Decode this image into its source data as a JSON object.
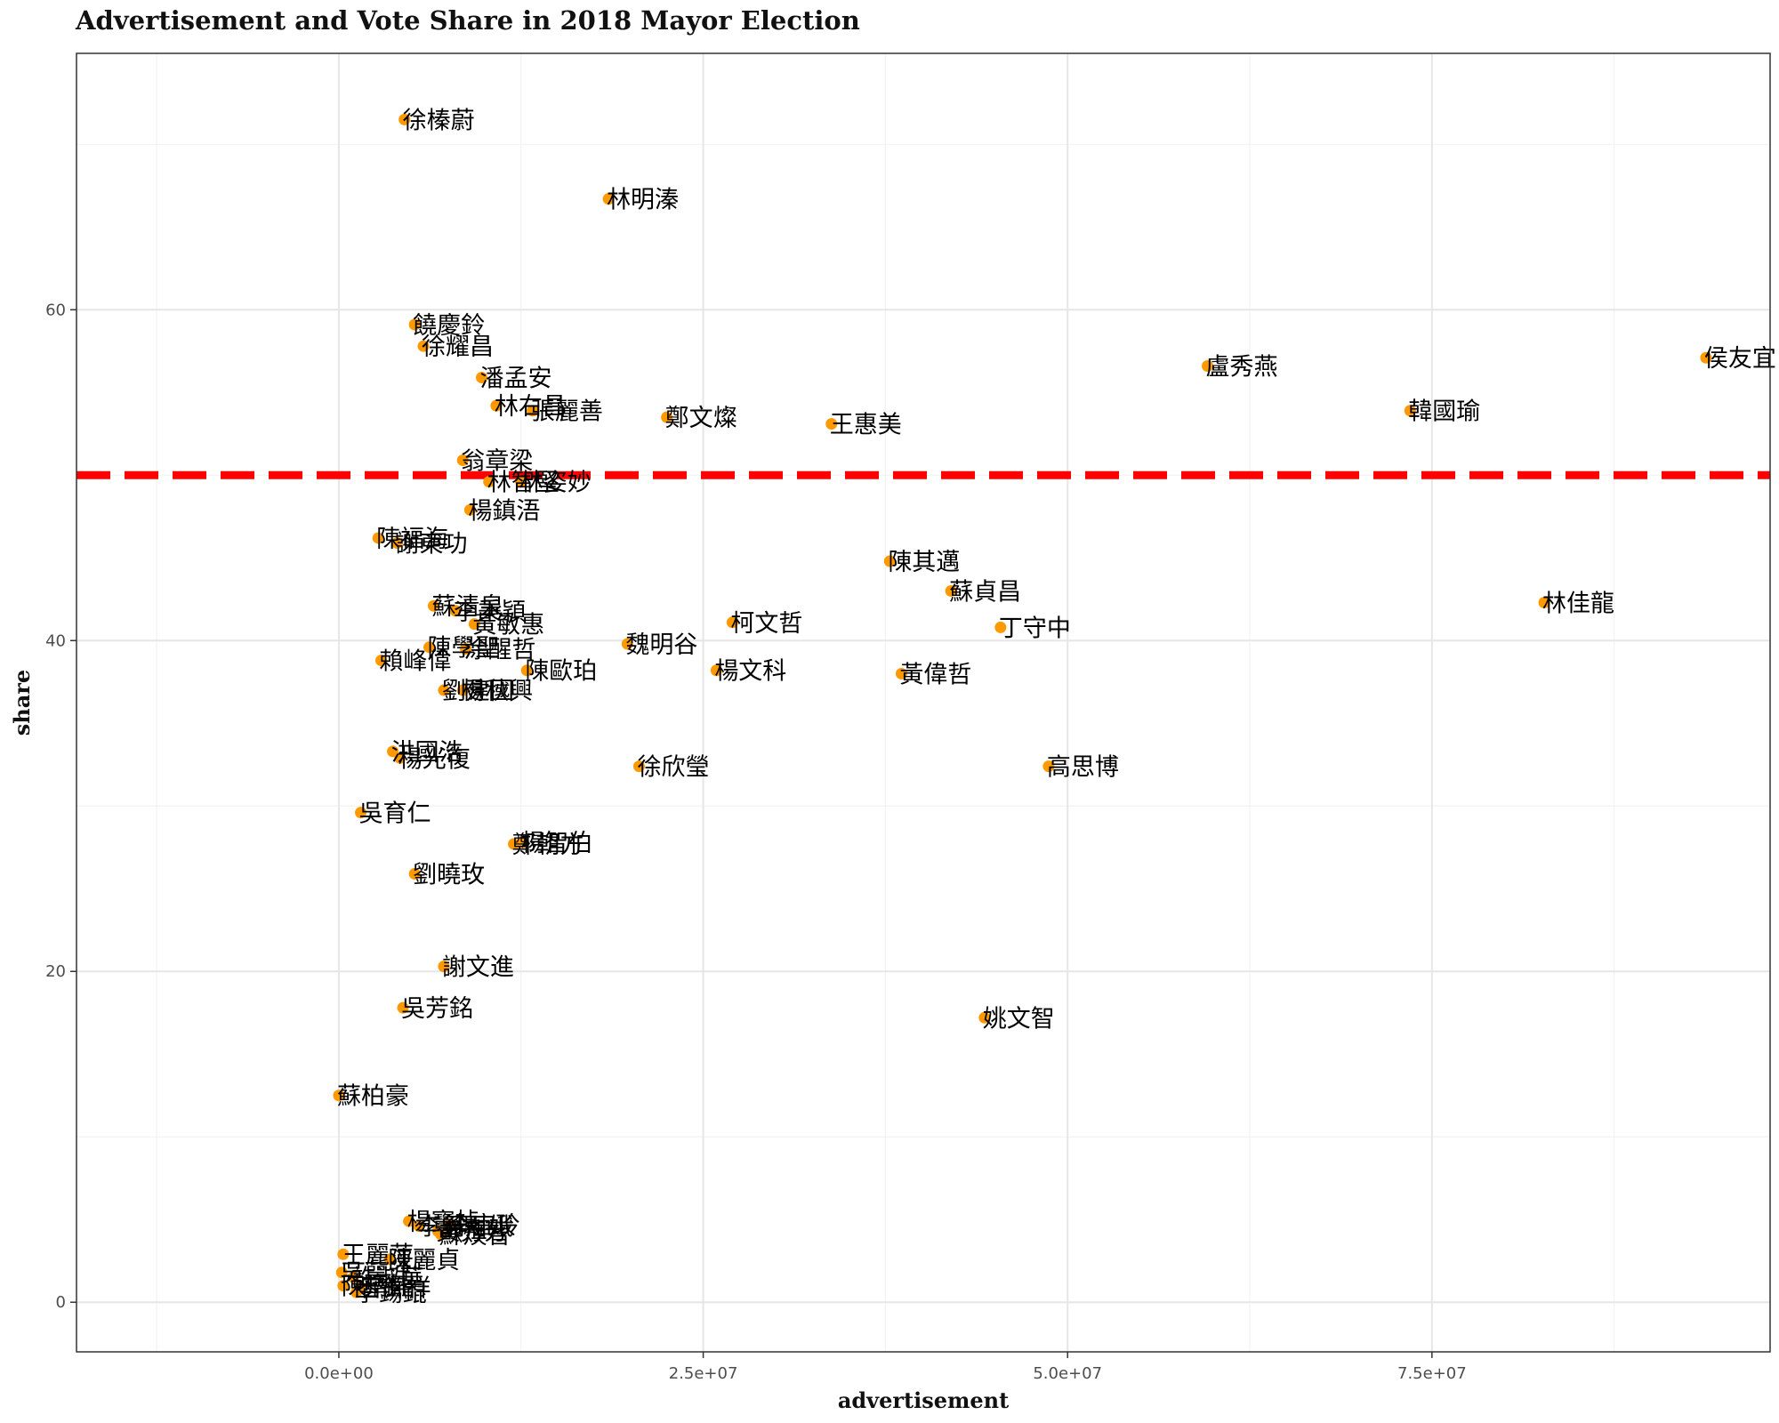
{
  "chart_data": {
    "type": "scatter",
    "title": "Advertisement and Vote Share in 2018 Mayor Election",
    "xlabel": "advertisement",
    "ylabel": "share",
    "xlim": [
      -18000000.0,
      98200000.0
    ],
    "ylim": [
      -3,
      75.5
    ],
    "x_ticks": [
      0,
      25000000,
      50000000,
      75000000
    ],
    "x_tick_labels": [
      "0.0e+00",
      "2.5e+07",
      "5.0e+07",
      "7.5e+07"
    ],
    "y_ticks": [
      0,
      20,
      40,
      60
    ],
    "y_tick_labels": [
      "0",
      "20",
      "40",
      "60"
    ],
    "reference_line": {
      "y": 50,
      "color": "#ff0000",
      "style": "dashed"
    },
    "point_color": "#ff9900",
    "grid": true,
    "points": [
      {
        "label": "徐榛蔚",
        "x": 4500000,
        "y": 71.5
      },
      {
        "label": "林明溱",
        "x": 18500000,
        "y": 66.7
      },
      {
        "label": "饒慶鈴",
        "x": 5200000,
        "y": 59.1
      },
      {
        "label": "徐耀昌",
        "x": 5800000,
        "y": 57.8
      },
      {
        "label": "潘孟安",
        "x": 9800000,
        "y": 55.9
      },
      {
        "label": "林右昌",
        "x": 10800000,
        "y": 54.2
      },
      {
        "label": "張麗善",
        "x": 13300000,
        "y": 53.9
      },
      {
        "label": "鄭文燦",
        "x": 22500000,
        "y": 53.5
      },
      {
        "label": "王惠美",
        "x": 33800000,
        "y": 53.1
      },
      {
        "label": "盧秀燕",
        "x": 59600000,
        "y": 56.6
      },
      {
        "label": "韓國瑜",
        "x": 73500000,
        "y": 53.9
      },
      {
        "label": "侯友宜",
        "x": 93800000,
        "y": 57.1
      },
      {
        "label": "翁章梁",
        "x": 8500000,
        "y": 50.9
      },
      {
        "label": "林智堅",
        "x": 10300000,
        "y": 49.6
      },
      {
        "label": "林姿妙",
        "x": 12500000,
        "y": 49.6
      },
      {
        "label": "楊鎮浯",
        "x": 9000000,
        "y": 47.9
      },
      {
        "label": "陳福海",
        "x": 2700000,
        "y": 46.2
      },
      {
        "label": "謝東功",
        "x": 4000000,
        "y": 45.9
      },
      {
        "label": "陳其邁",
        "x": 37800000,
        "y": 44.8
      },
      {
        "label": "蘇貞昌",
        "x": 42000000,
        "y": 43.0
      },
      {
        "label": "林佳龍",
        "x": 82700000,
        "y": 42.3
      },
      {
        "label": "蘇清泉",
        "x": 6500000,
        "y": 42.1
      },
      {
        "label": "李秉穎",
        "x": 8000000,
        "y": 41.8
      },
      {
        "label": "黃敏惠",
        "x": 9300000,
        "y": 41.0
      },
      {
        "label": "柯文哲",
        "x": 27000000,
        "y": 41.1
      },
      {
        "label": "丁守中",
        "x": 45400000,
        "y": 40.8
      },
      {
        "label": "魏明谷",
        "x": 19800000,
        "y": 39.8
      },
      {
        "label": "陳學聖",
        "x": 6200000,
        "y": 39.6
      },
      {
        "label": "涂醒哲",
        "x": 8700000,
        "y": 39.5
      },
      {
        "label": "賴峰偉",
        "x": 2900000,
        "y": 38.8
      },
      {
        "label": "陳歐珀",
        "x": 12900000,
        "y": 38.2
      },
      {
        "label": "楊文科",
        "x": 25900000,
        "y": 38.2
      },
      {
        "label": "黃偉哲",
        "x": 38600000,
        "y": 38.0
      },
      {
        "label": "劉建國",
        "x": 7200000,
        "y": 37.0
      },
      {
        "label": "楊秋興",
        "x": 8500000,
        "y": 37.0
      },
      {
        "label": "洪國浩",
        "x": 3700000,
        "y": 33.3
      },
      {
        "label": "楊光復",
        "x": 4200000,
        "y": 32.9
      },
      {
        "label": "徐欣瑩",
        "x": 20600000,
        "y": 32.4
      },
      {
        "label": "高思博",
        "x": 48700000,
        "y": 32.4
      },
      {
        "label": "吳育仁",
        "x": 1500000,
        "y": 29.6
      },
      {
        "label": "鄭朝方",
        "x": 12000000,
        "y": 27.7
      },
      {
        "label": "楊智伯",
        "x": 12600000,
        "y": 27.8
      },
      {
        "label": "劉曉玫",
        "x": 5200000,
        "y": 25.9
      },
      {
        "label": "謝文進",
        "x": 7200000,
        "y": 20.3
      },
      {
        "label": "吳芳銘",
        "x": 4400000,
        "y": 17.8
      },
      {
        "label": "姚文智",
        "x": 44300000,
        "y": 17.2
      },
      {
        "label": "蘇柏豪",
        "x": 0,
        "y": 12.5
      },
      {
        "label": "楊寶楨",
        "x": 4800000,
        "y": 4.9
      },
      {
        "label": "李翁月娥",
        "x": 5500000,
        "y": 4.6
      },
      {
        "label": "黃秀芳",
        "x": 6800000,
        "y": 4.3
      },
      {
        "label": "李宜玲",
        "x": 7600000,
        "y": 4.7
      },
      {
        "label": "蘇煥智",
        "x": 7000000,
        "y": 4.1
      },
      {
        "label": "王麗萍",
        "x": 300000,
        "y": 2.9
      },
      {
        "label": "陳麗貞",
        "x": 3500000,
        "y": 2.6
      },
      {
        "label": "吳萼洋",
        "x": 200000,
        "y": 1.8
      },
      {
        "label": "許淑華",
        "x": 1000000,
        "y": 1.5
      },
      {
        "label": "陳清龍",
        "x": 300000,
        "y": 1.0
      },
      {
        "label": "曾錦祥",
        "x": 1500000,
        "y": 0.9
      },
      {
        "label": "李錫錕",
        "x": 1200000,
        "y": 0.6
      }
    ]
  }
}
